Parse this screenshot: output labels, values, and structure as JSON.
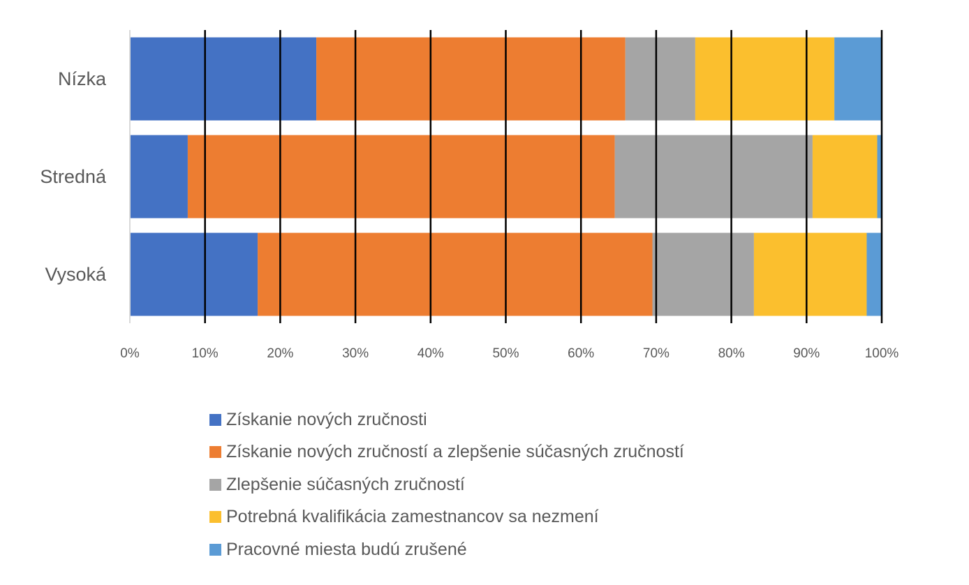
{
  "chart_data": {
    "type": "bar",
    "orientation": "horizontal",
    "stacked": "percent",
    "title": "",
    "xlabel": "",
    "ylabel": "",
    "xlim": [
      0,
      100
    ],
    "grid": "vertical tick marks",
    "legend_position": "bottom",
    "categories": [
      "Nízka",
      "Stredná",
      "Vysoká"
    ],
    "x_ticks": [
      "0%",
      "10%",
      "20%",
      "30%",
      "40%",
      "50%",
      "60%",
      "70%",
      "80%",
      "90%",
      "100%"
    ],
    "series": [
      {
        "name": "Získanie nových zručnosti",
        "color": "#4472C4",
        "values": [
          24.8,
          7.7,
          17.0
        ]
      },
      {
        "name": "Získanie nových zručností a zlepšenie súčasných zručností",
        "color": "#ED7D31",
        "values": [
          41.1,
          56.8,
          52.5
        ]
      },
      {
        "name": "Zlepšenie súčasných zručností",
        "color": "#A5A5A5",
        "values": [
          9.3,
          26.3,
          13.5
        ]
      },
      {
        "name": "Potrebná kvalifikácia zamestnancov sa nezmení",
        "color": "#FBBF2E",
        "values": [
          18.5,
          8.6,
          15.0
        ]
      },
      {
        "name": "Pracovné miesta budú zrušené",
        "color": "#5B9BD5",
        "values": [
          6.3,
          0.6,
          2.0
        ]
      }
    ]
  }
}
